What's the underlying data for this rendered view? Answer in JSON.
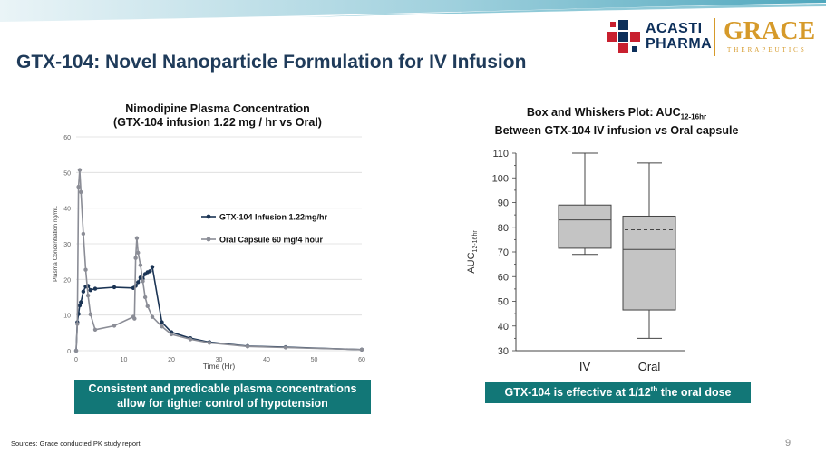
{
  "slide": {
    "title": "GTX-104: Novel Nanoparticle Formulation for IV Infusion",
    "sources": "Sources: Grace conducted PK study report",
    "page_number": "9"
  },
  "logos": {
    "acasti_line1": "ACASTI",
    "acasti_line2": "PHARMA",
    "grace_name": "GRACE",
    "grace_sub": "THERAPEUTICS",
    "colors": {
      "acasti_blue": "#0d2f5a",
      "acasti_red": "#c8202f",
      "grace_gold": "#d69a2a"
    }
  },
  "colors": {
    "teal_callout": "#127777",
    "iv_series": "#1b3454",
    "oral_series": "#8b8d96",
    "box_fill": "#c4c4c4"
  },
  "left_chart": {
    "title_line1": "Nimodipine Plasma Concentration",
    "title_line2": "(GTX-104 infusion 1.22 mg / hr vs Oral)",
    "callout_line1": "Consistent and predicable plasma concentrations",
    "callout_line2": "allow for tighter control of hypotension"
  },
  "right_chart": {
    "title_line1_main": "Box and Whiskers Plot: AUC",
    "title_line1_sub": "12-16hr",
    "title_line2": "Between GTX-104 IV infusion vs Oral capsule",
    "ylabel_main": "AUC",
    "ylabel_sub": "12-16hr",
    "callout_main": "GTX-104 is effective at 1/12",
    "callout_sup": "th",
    "callout_end": " the oral dose"
  },
  "chart_data": [
    {
      "type": "line",
      "title": "Nimodipine Plasma Concentration (GTX-104 infusion 1.22 mg / hr vs Oral)",
      "xlabel": "Time (Hr)",
      "ylabel": "Plasma Concentration ng/mL",
      "xlim": [
        0,
        60
      ],
      "ylim": [
        0,
        60
      ],
      "xticks": [
        0,
        10,
        20,
        30,
        40,
        50,
        60
      ],
      "yticks": [
        0,
        10,
        20,
        30,
        40,
        50,
        60
      ],
      "grid": true,
      "legend": "center-right",
      "series": [
        {
          "name": "GTX-104 Infusion 1.22mg/hr",
          "color": "#1b3454",
          "x": [
            0,
            0.25,
            0.5,
            0.75,
            1,
            1.5,
            2,
            2.5,
            3,
            4,
            8,
            12,
            12.5,
            13,
            13.5,
            14,
            14.5,
            15,
            15.5,
            16,
            18,
            20,
            24,
            28,
            36,
            44,
            60
          ],
          "y": [
            0,
            8,
            10.3,
            12.7,
            13.6,
            16.6,
            18,
            18.2,
            17,
            17.4,
            17.8,
            17.6,
            18.2,
            19.2,
            20.5,
            20.2,
            21.5,
            22,
            22.3,
            23.5,
            8,
            5.2,
            3.5,
            2.4,
            1.3,
            1,
            0.3
          ]
        },
        {
          "name": "Oral Capsule 60 mg/4 hour",
          "color": "#8b8d96",
          "x": [
            0,
            0.25,
            0.5,
            0.75,
            1,
            1.5,
            2,
            2.5,
            3,
            4,
            8,
            12,
            12.25,
            12.5,
            12.75,
            13,
            13.5,
            14,
            14.5,
            15,
            16,
            18,
            20,
            24,
            28,
            36,
            44,
            60
          ],
          "y": [
            0,
            7.5,
            46,
            50.7,
            44.5,
            32.8,
            22.7,
            15.5,
            10.2,
            5.9,
            7,
            9.5,
            9,
            26,
            31.6,
            27.5,
            24,
            19.5,
            15,
            12.5,
            9.5,
            6.8,
            4.6,
            3.2,
            2.2,
            1.2,
            0.9,
            0.3
          ]
        }
      ]
    },
    {
      "type": "box",
      "title": "Box and Whiskers Plot: AUC12-16hr Between GTX-104 IV infusion vs Oral capsule",
      "ylabel": "AUC12-16hr",
      "ylim": [
        30,
        110
      ],
      "yticks": [
        30,
        40,
        50,
        60,
        70,
        80,
        90,
        100,
        110
      ],
      "categories": [
        "IV",
        "Oral"
      ],
      "boxes": [
        {
          "name": "IV",
          "min": 69,
          "q1": 71.5,
          "median": 83,
          "q3": 89,
          "max": 110,
          "mean": null
        },
        {
          "name": "Oral",
          "min": 35,
          "q1": 46.5,
          "median": 71,
          "q3": 84.5,
          "max": 106,
          "mean": 79
        }
      ]
    }
  ]
}
